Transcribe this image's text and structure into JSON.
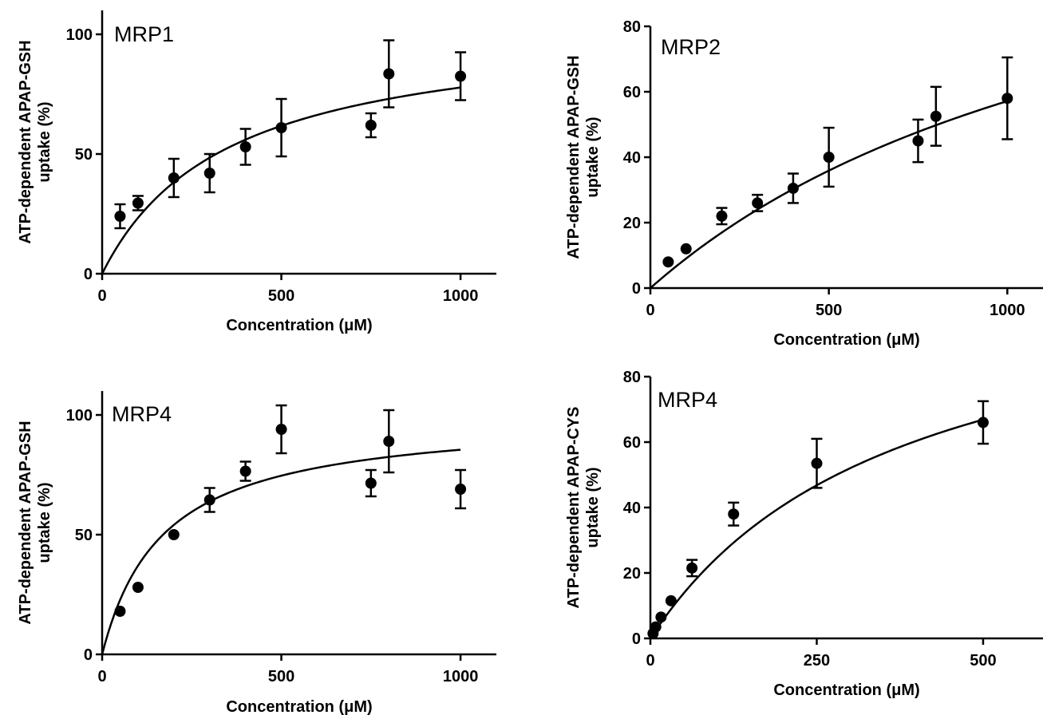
{
  "chart_data": [
    {
      "type": "scatter",
      "title": "MRP1",
      "xlabel": "Concentration (μM)",
      "ylabel": "ATP-dependent APAP-GSH uptake (%)",
      "xlim": [
        0,
        1100
      ],
      "ylim": [
        0,
        110
      ],
      "x_ticks": [
        0,
        500,
        1000
      ],
      "y_ticks": [
        0,
        50,
        100
      ],
      "grid": false,
      "fit_curve": {
        "model": "Michaelis-Menten",
        "vmax": 105,
        "km": 350,
        "x_range": [
          0,
          1000
        ]
      },
      "points": [
        {
          "x": 50,
          "y": 24,
          "err": 5
        },
        {
          "x": 100,
          "y": 29.5,
          "err": 3
        },
        {
          "x": 200,
          "y": 40,
          "err": 8
        },
        {
          "x": 300,
          "y": 42,
          "err": 8
        },
        {
          "x": 400,
          "y": 53,
          "err": 7.5
        },
        {
          "x": 500,
          "y": 61,
          "err": 12
        },
        {
          "x": 750,
          "y": 62,
          "err": 5
        },
        {
          "x": 800,
          "y": 83.5,
          "err": 14
        },
        {
          "x": 1000,
          "y": 82.5,
          "err": 10
        }
      ]
    },
    {
      "type": "scatter",
      "title": "MRP2",
      "xlabel": "Concentration (μM)",
      "ylabel": "ATP-dependent APAP-GSH uptake (%)",
      "xlim": [
        0,
        1100
      ],
      "ylim": [
        0,
        80
      ],
      "x_ticks": [
        0,
        500,
        1000
      ],
      "y_ticks": [
        0,
        20,
        40,
        60,
        80
      ],
      "grid": false,
      "fit_curve": {
        "model": "Michaelis-Menten",
        "vmax": 140,
        "km": 1450,
        "x_range": [
          0,
          1000
        ]
      },
      "points": [
        {
          "x": 50,
          "y": 8,
          "err": 0
        },
        {
          "x": 100,
          "y": 12,
          "err": 0
        },
        {
          "x": 200,
          "y": 22,
          "err": 2.5
        },
        {
          "x": 300,
          "y": 26,
          "err": 2.5
        },
        {
          "x": 400,
          "y": 30.5,
          "err": 4.5
        },
        {
          "x": 500,
          "y": 40,
          "err": 9
        },
        {
          "x": 750,
          "y": 45,
          "err": 6.5
        },
        {
          "x": 800,
          "y": 52.5,
          "err": 9
        },
        {
          "x": 1000,
          "y": 58,
          "err": 12.5
        }
      ]
    },
    {
      "type": "scatter",
      "title": "MRP4",
      "xlabel": "Concentration (μM)",
      "ylabel": "ATP-dependent APAP-GSH uptake (%)",
      "xlim": [
        0,
        1100
      ],
      "ylim": [
        0,
        110
      ],
      "x_ticks": [
        0,
        500,
        1000
      ],
      "y_ticks": [
        0,
        50,
        100
      ],
      "grid": false,
      "fit_curve": {
        "model": "Michaelis-Menten",
        "vmax": 100,
        "km": 170,
        "x_range": [
          0,
          1000
        ]
      },
      "points": [
        {
          "x": 50,
          "y": 18,
          "err": 0
        },
        {
          "x": 100,
          "y": 28,
          "err": 0
        },
        {
          "x": 200,
          "y": 50,
          "err": 0
        },
        {
          "x": 300,
          "y": 64.5,
          "err": 5
        },
        {
          "x": 400,
          "y": 76.5,
          "err": 4
        },
        {
          "x": 500,
          "y": 94,
          "err": 10
        },
        {
          "x": 750,
          "y": 71.5,
          "err": 5.5
        },
        {
          "x": 800,
          "y": 89,
          "err": 13
        },
        {
          "x": 1000,
          "y": 69,
          "err": 8
        }
      ]
    },
    {
      "type": "scatter",
      "title": "MRP4",
      "xlabel": "Concentration (μM)",
      "ylabel": "ATP-dependent APAP-CYS uptake (%)",
      "xlim": [
        0,
        590
      ],
      "ylim": [
        0,
        80
      ],
      "x_ticks": [
        0,
        250,
        500
      ],
      "y_ticks": [
        0,
        20,
        40,
        60,
        80
      ],
      "grid": false,
      "fit_curve": {
        "model": "Michaelis-Menten",
        "vmax": 117,
        "km": 375,
        "x_range": [
          0,
          500
        ]
      },
      "points": [
        {
          "x": 4,
          "y": 1.5,
          "err": 0
        },
        {
          "x": 8,
          "y": 3.5,
          "err": 0
        },
        {
          "x": 16,
          "y": 6.5,
          "err": 0
        },
        {
          "x": 31,
          "y": 11.5,
          "err": 0
        },
        {
          "x": 62.5,
          "y": 21.5,
          "err": 2.5
        },
        {
          "x": 125,
          "y": 38,
          "err": 3.5
        },
        {
          "x": 250,
          "y": 53.5,
          "err": 7.5
        },
        {
          "x": 500,
          "y": 66,
          "err": 6.5
        }
      ]
    }
  ]
}
